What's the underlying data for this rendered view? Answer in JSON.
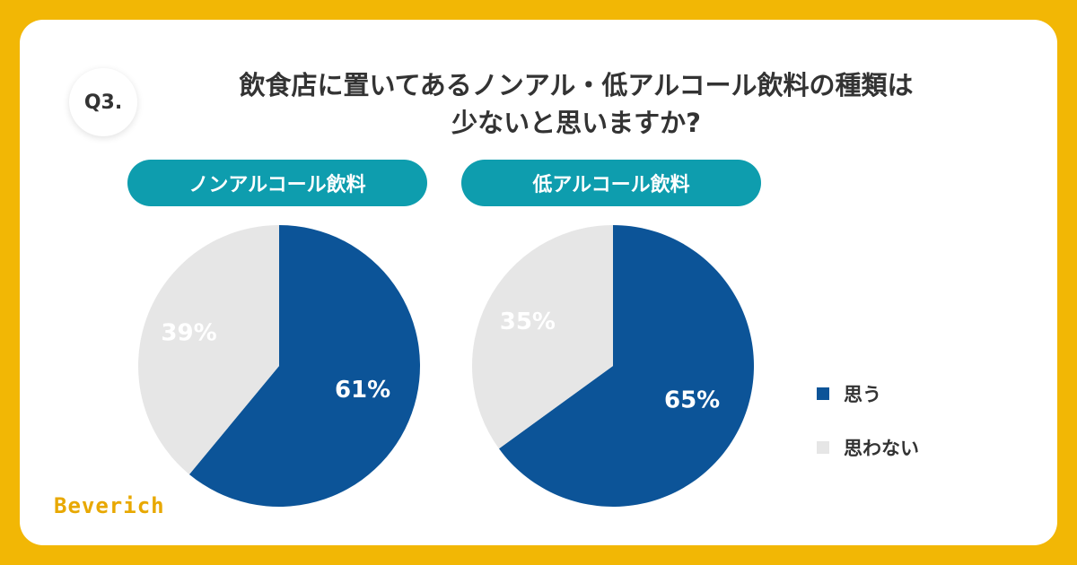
{
  "question_number": "Q3.",
  "title_line1": "飲食店に置いてあるノンアル・低アルコール飲料の種類は",
  "title_line2": "少ないと思いますか?",
  "logo": "Beverich",
  "colors": {
    "background": "#F2B705",
    "pill": "#0E9DAE",
    "yes": "#0C5498",
    "no": "#E6E6E6"
  },
  "chart_data": [
    {
      "type": "pie",
      "title": "ノンアルコール飲料",
      "slices": [
        {
          "label": "思う",
          "value": 61,
          "display": "61%"
        },
        {
          "label": "思わない",
          "value": 39,
          "display": "39%"
        }
      ]
    },
    {
      "type": "pie",
      "title": "低アルコール飲料",
      "slices": [
        {
          "label": "思う",
          "value": 65,
          "display": "65%"
        },
        {
          "label": "思わない",
          "value": 35,
          "display": "35%"
        }
      ]
    }
  ],
  "legend": [
    {
      "label": "思う",
      "color": "#0C5498"
    },
    {
      "label": "思わない",
      "color": "#E6E6E6"
    }
  ]
}
